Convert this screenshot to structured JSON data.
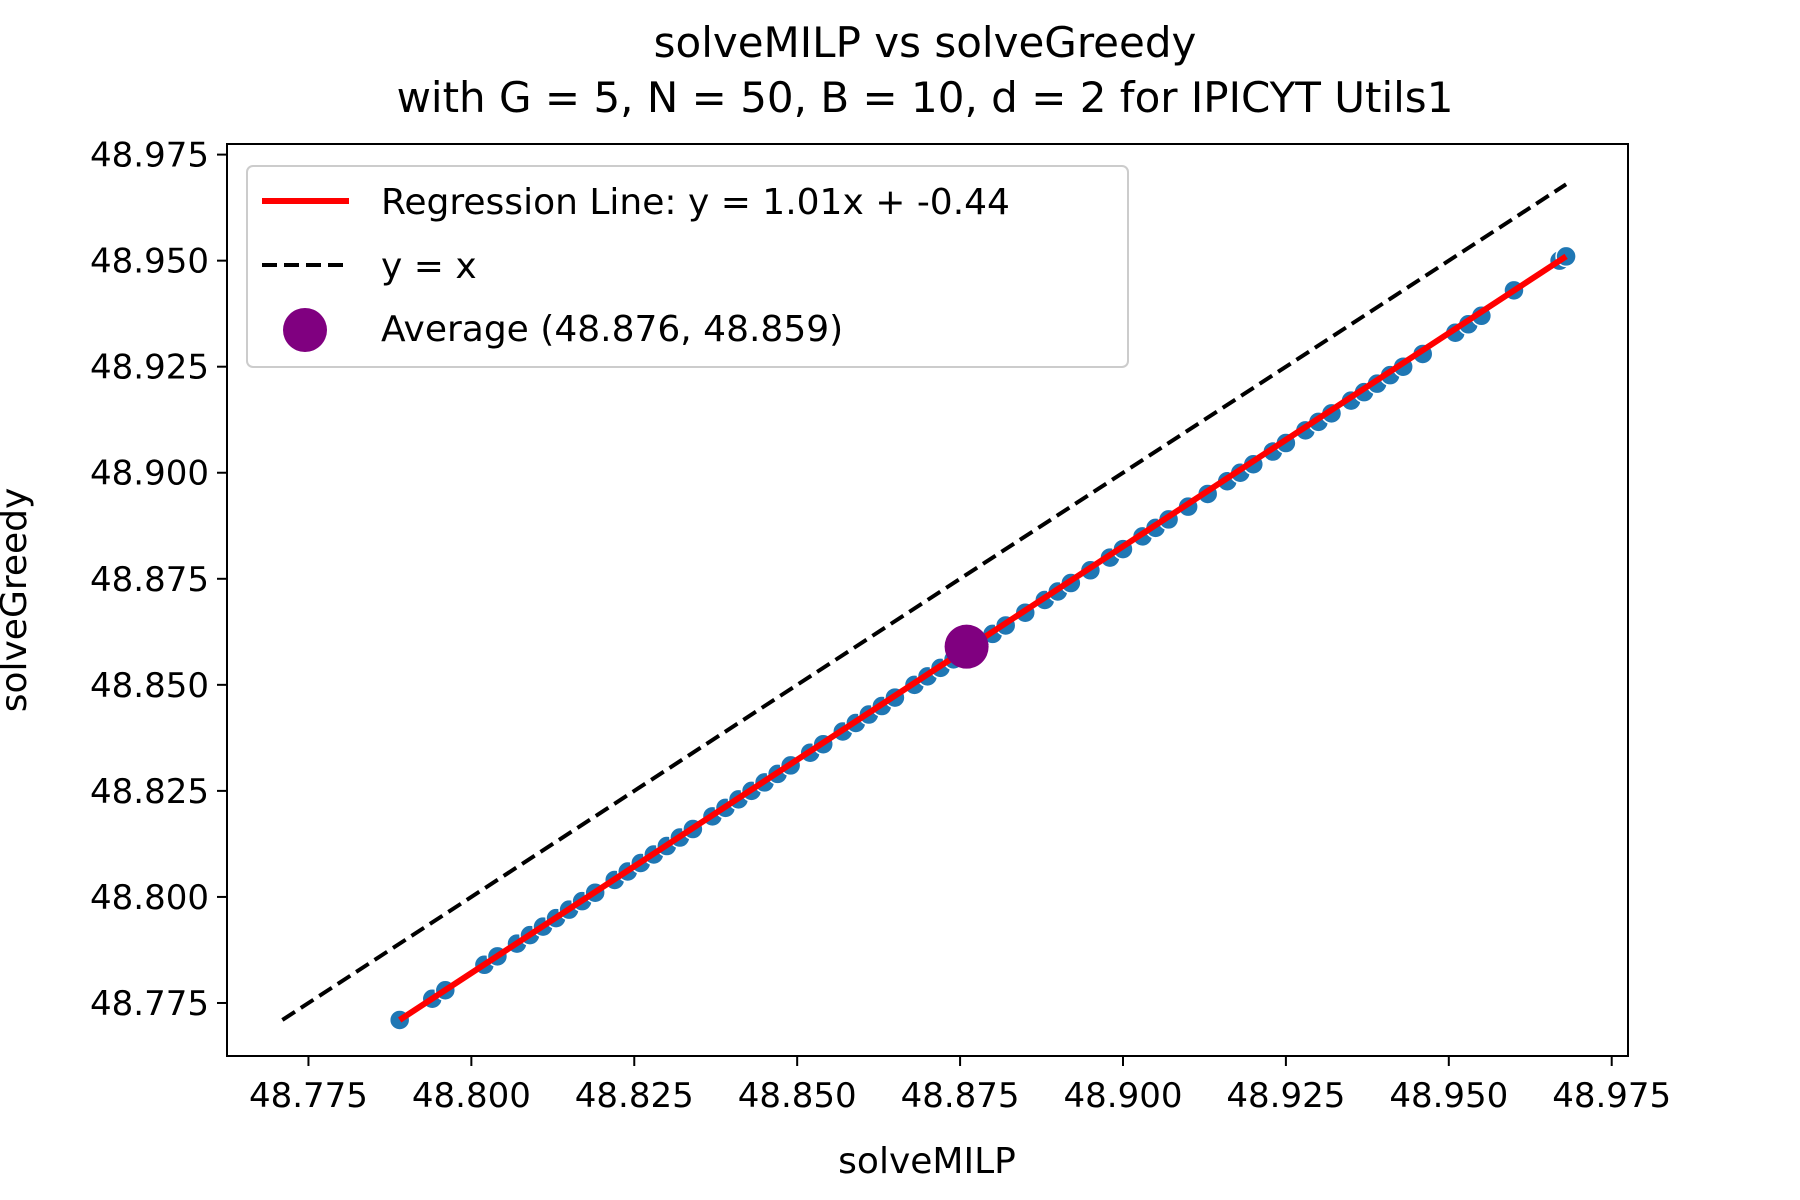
{
  "chart_data": {
    "type": "scatter",
    "title": "solveMILP vs solveGreedy",
    "subtitle": "with G = 5, N = 50, B = 10, d = 2 for IPICYT Utils1",
    "xlabel": "solveMILP",
    "ylabel": "solveGreedy",
    "xlim": [
      48.7625,
      48.9775
    ],
    "ylim": [
      48.7625,
      48.9775
    ],
    "xticks": [
      "48.775",
      "48.800",
      "48.825",
      "48.850",
      "48.875",
      "48.900",
      "48.925",
      "48.950",
      "48.975"
    ],
    "yticks": [
      "48.775",
      "48.800",
      "48.825",
      "48.850",
      "48.875",
      "48.900",
      "48.925",
      "48.950",
      "48.975"
    ],
    "grid": false,
    "legend_position": "top-left",
    "colors": {
      "points": "#1f77b4",
      "regression": "#ff0000",
      "identity": "#000000",
      "average": "#800080"
    },
    "series": [
      {
        "name": "Regression Line: y = 1.01x + -0.44",
        "kind": "line",
        "slope": 1.01,
        "intercept": -0.44,
        "x": [
          48.789,
          48.968
        ],
        "y": [
          48.771,
          48.951
        ]
      },
      {
        "name": "y = x",
        "kind": "dashed-line",
        "x": [
          48.771,
          48.968
        ],
        "y": [
          48.771,
          48.968
        ]
      },
      {
        "name": "Average (48.876, 48.859)",
        "kind": "point",
        "x": [
          48.876
        ],
        "y": [
          48.859
        ]
      },
      {
        "kind": "scatter",
        "x": [
          48.789,
          48.794,
          48.796,
          48.802,
          48.804,
          48.807,
          48.809,
          48.811,
          48.813,
          48.815,
          48.817,
          48.819,
          48.822,
          48.824,
          48.826,
          48.828,
          48.83,
          48.832,
          48.834,
          48.837,
          48.839,
          48.841,
          48.843,
          48.845,
          48.847,
          48.849,
          48.852,
          48.854,
          48.857,
          48.859,
          48.861,
          48.863,
          48.865,
          48.868,
          48.87,
          48.872,
          48.874,
          48.878,
          48.88,
          48.882,
          48.885,
          48.888,
          48.89,
          48.892,
          48.895,
          48.898,
          48.9,
          48.903,
          48.905,
          48.907,
          48.91,
          48.913,
          48.916,
          48.918,
          48.92,
          48.923,
          48.925,
          48.928,
          48.93,
          48.932,
          48.935,
          48.937,
          48.939,
          48.941,
          48.943,
          48.946,
          48.951,
          48.953,
          48.955,
          48.96,
          48.967,
          48.968
        ],
        "y": [
          48.771,
          48.776,
          48.778,
          48.784,
          48.786,
          48.789,
          48.791,
          48.793,
          48.795,
          48.797,
          48.799,
          48.801,
          48.804,
          48.806,
          48.808,
          48.81,
          48.812,
          48.814,
          48.816,
          48.819,
          48.821,
          48.823,
          48.825,
          48.827,
          48.829,
          48.831,
          48.834,
          48.836,
          48.839,
          48.841,
          48.843,
          48.845,
          48.847,
          48.85,
          48.852,
          48.854,
          48.856,
          48.86,
          48.862,
          48.864,
          48.867,
          48.87,
          48.872,
          48.874,
          48.877,
          48.88,
          48.882,
          48.885,
          48.887,
          48.889,
          48.892,
          48.895,
          48.898,
          48.9,
          48.902,
          48.905,
          48.907,
          48.91,
          48.912,
          48.914,
          48.917,
          48.919,
          48.921,
          48.923,
          48.925,
          48.928,
          48.933,
          48.935,
          48.937,
          48.943,
          48.95,
          48.951
        ]
      }
    ]
  }
}
